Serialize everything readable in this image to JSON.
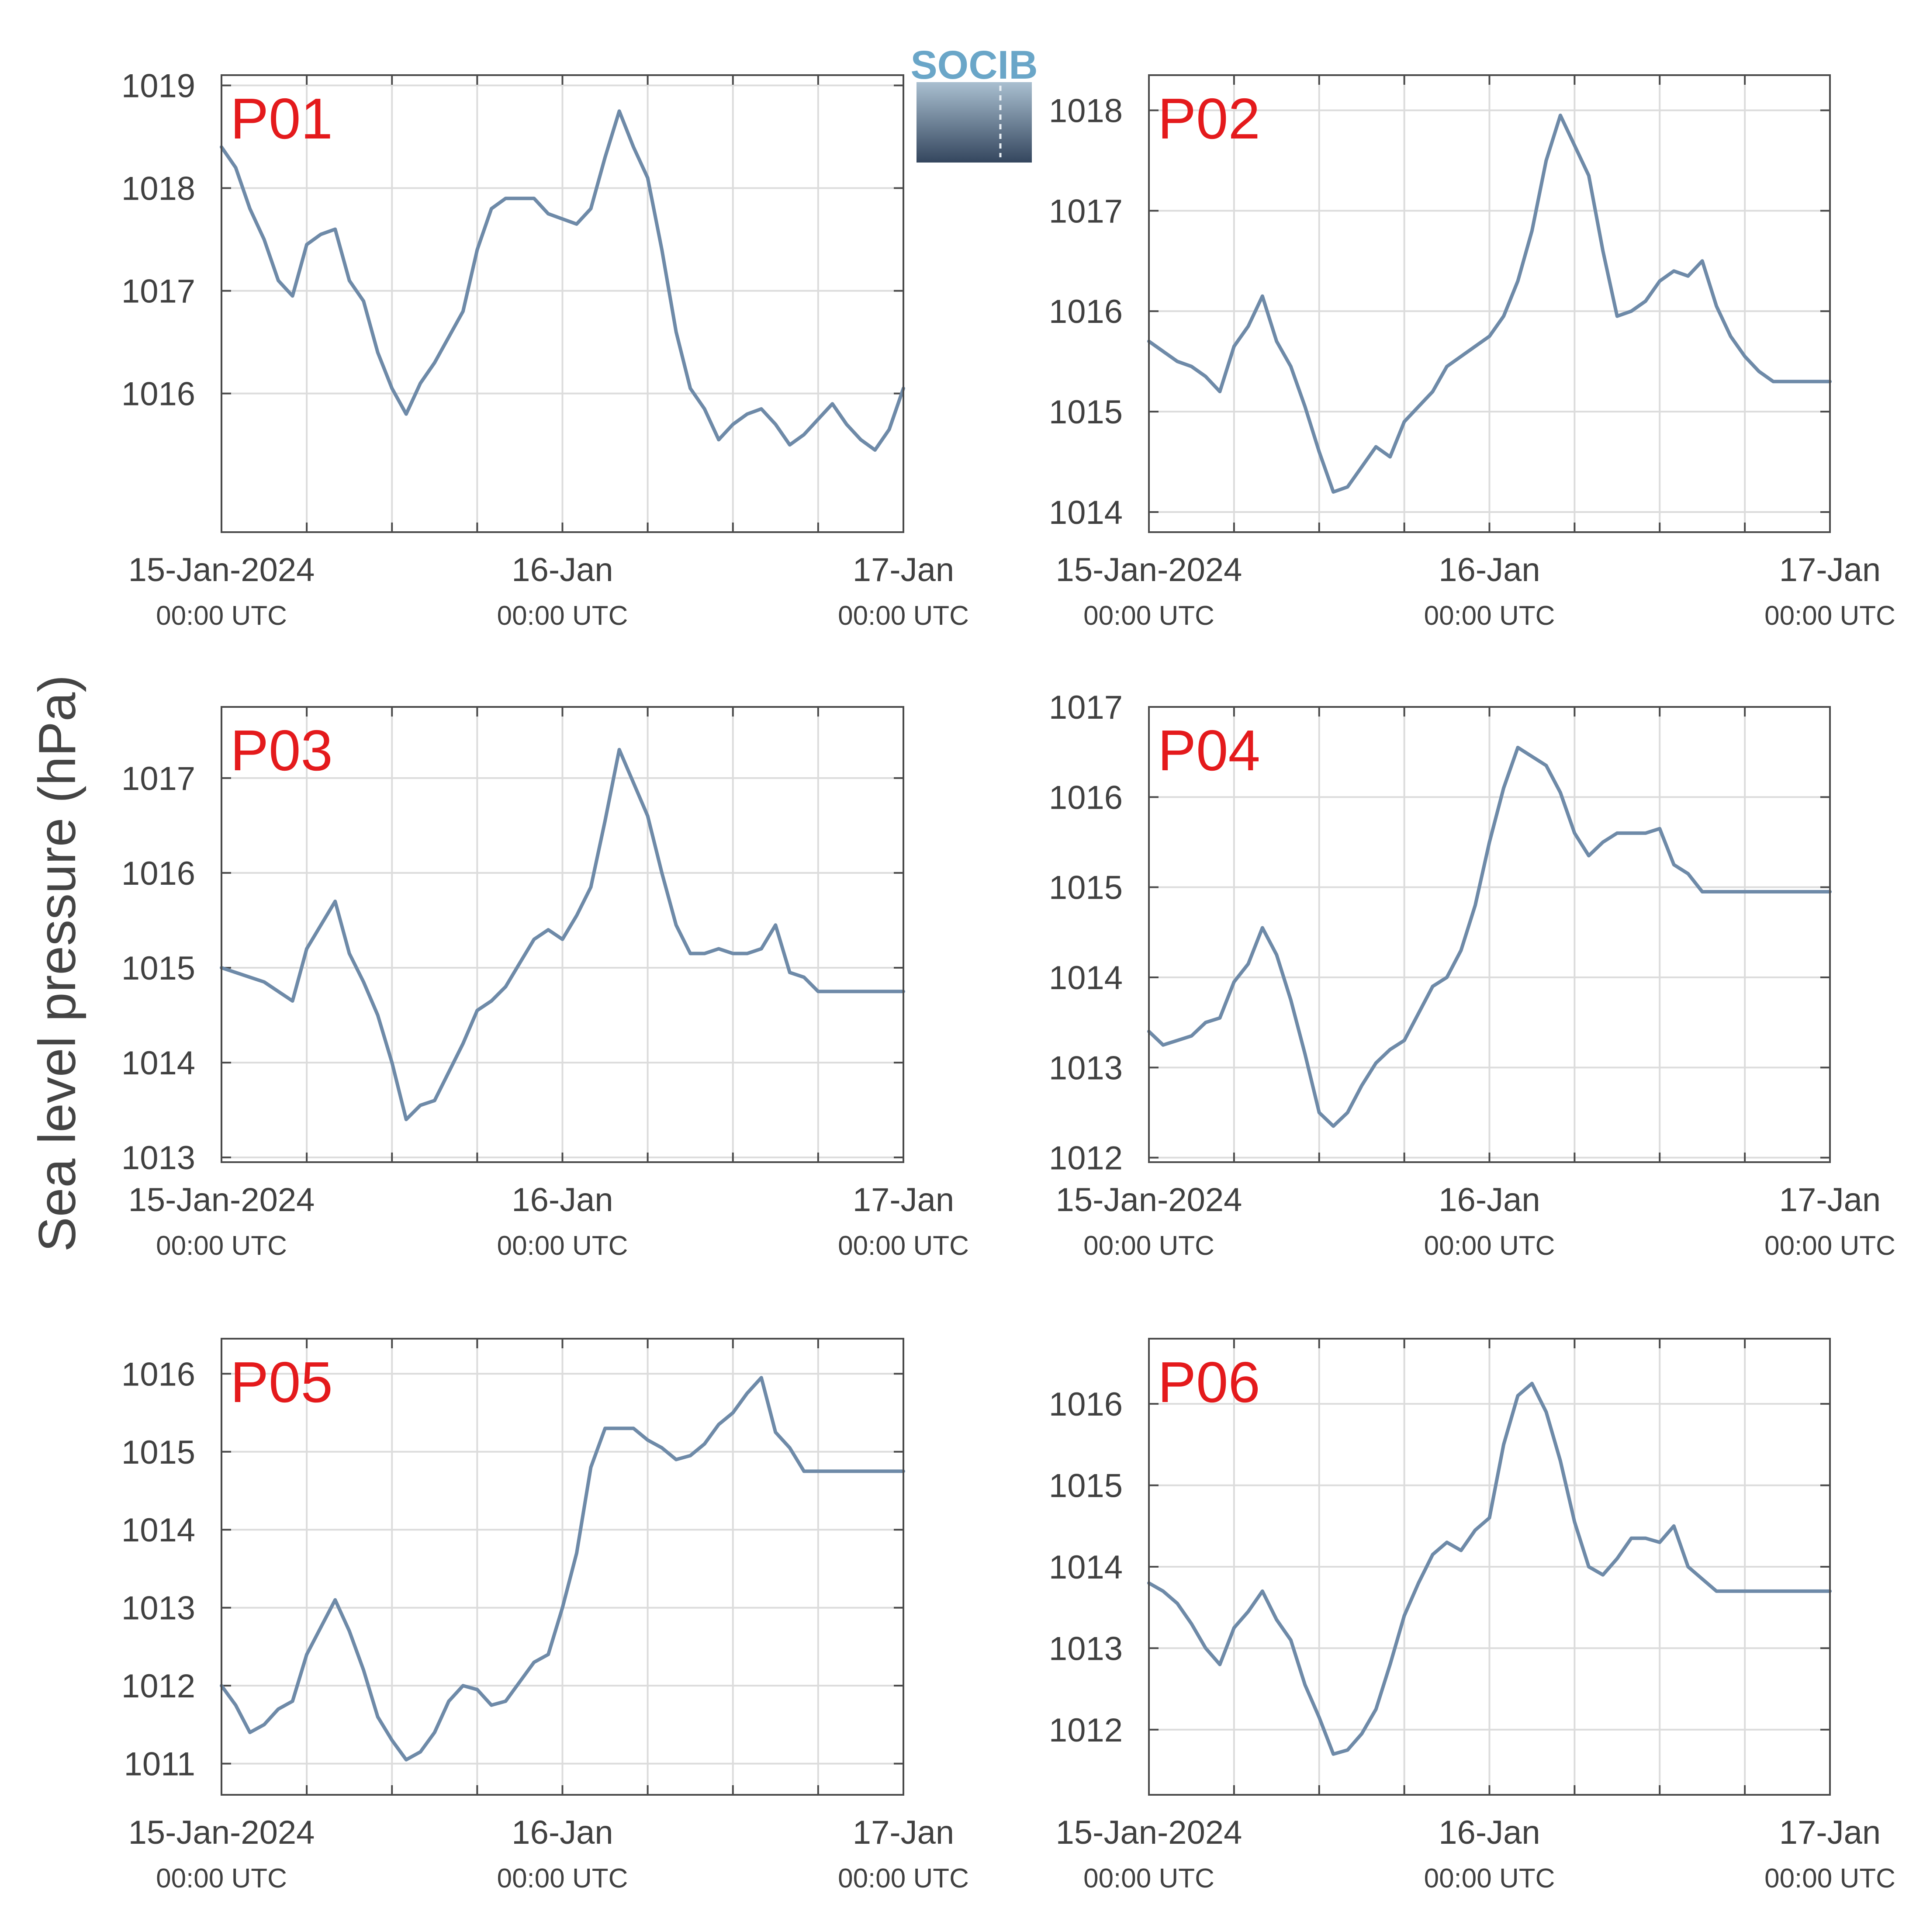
{
  "figure": {
    "ylabel": "Sea level pressure (hPa)",
    "logo_text": "SOCIB",
    "x_ticks": [
      {
        "value": 0,
        "date": "15-Jan-2024",
        "time": "00:00 UTC"
      },
      {
        "value": 24,
        "date": "16-Jan",
        "time": "00:00 UTC"
      },
      {
        "value": 48,
        "date": "17-Jan",
        "time": "00:00 UTC"
      }
    ],
    "x_gridlines_hours": [
      6,
      12,
      18,
      24,
      30,
      36,
      42
    ],
    "xlim_hours": [
      0,
      48
    ],
    "line_color": "#6e8aa8",
    "label_color": "#e41a1c"
  },
  "chart_data": [
    {
      "type": "line",
      "name": "P01",
      "xlabel": "",
      "ylabel": "",
      "ylim": [
        1014.65,
        1019.1
      ],
      "yticks": [
        1016,
        1017,
        1018,
        1019
      ],
      "grid": true,
      "x": [
        0,
        1,
        2,
        3,
        4,
        5,
        6,
        7,
        8,
        9,
        10,
        11,
        12,
        13,
        14,
        15,
        16,
        17,
        18,
        19,
        20,
        21,
        22,
        23,
        24,
        25,
        26,
        27,
        28,
        29,
        30,
        31,
        32,
        33,
        34,
        35,
        36,
        37,
        38,
        39,
        40,
        41,
        42,
        43,
        44,
        45,
        46,
        47,
        48
      ],
      "values": [
        1018.4,
        1018.2,
        1017.8,
        1017.5,
        1017.1,
        1016.95,
        1017.45,
        1017.55,
        1017.6,
        1017.1,
        1016.9,
        1016.4,
        1016.05,
        1015.8,
        1016.1,
        1016.3,
        1016.55,
        1016.8,
        1017.4,
        1017.8,
        1017.9,
        1017.9,
        1017.9,
        1017.75,
        1017.7,
        1017.65,
        1017.8,
        1018.3,
        1018.75,
        1018.4,
        1018.1,
        1017.4,
        1016.6,
        1016.05,
        1015.85,
        1015.55,
        1015.7,
        1015.8,
        1015.85,
        1015.7,
        1015.5,
        1015.6,
        1015.75,
        1015.9,
        1015.7,
        1015.55,
        1015.45,
        1015.65,
        1016.05
      ]
    },
    {
      "type": "line",
      "name": "P02",
      "xlabel": "",
      "ylabel": "",
      "ylim": [
        1013.8,
        1018.35
      ],
      "yticks": [
        1014,
        1015,
        1016,
        1017,
        1018
      ],
      "grid": true,
      "x": [
        0,
        1,
        2,
        3,
        4,
        5,
        6,
        7,
        8,
        9,
        10,
        11,
        12,
        13,
        14,
        15,
        16,
        17,
        18,
        19,
        20,
        21,
        22,
        23,
        24,
        25,
        26,
        27,
        28,
        29,
        30,
        31,
        32,
        33,
        34,
        35,
        36,
        37,
        38,
        39,
        40,
        41,
        42,
        43,
        44,
        45,
        46,
        47,
        48
      ],
      "values": [
        1015.7,
        1015.6,
        1015.5,
        1015.45,
        1015.35,
        1015.2,
        1015.65,
        1015.85,
        1016.15,
        1015.7,
        1015.45,
        1015.05,
        1014.6,
        1014.2,
        1014.25,
        1014.45,
        1014.65,
        1014.55,
        1014.9,
        1015.05,
        1015.2,
        1015.45,
        1015.55,
        1015.65,
        1015.75,
        1015.95,
        1016.3,
        1016.8,
        1017.5,
        1017.95,
        1017.65,
        1017.35,
        1016.6,
        1015.95,
        1016.0,
        1016.1,
        1016.3,
        1016.4,
        1016.35,
        1016.5,
        1016.05,
        1015.75,
        1015.55,
        1015.4,
        1015.3,
        1015.3,
        1015.3,
        1015.3,
        1015.3
      ]
    },
    {
      "type": "line",
      "name": "P03",
      "xlabel": "",
      "ylabel": "",
      "ylim": [
        1012.95,
        1017.75
      ],
      "yticks": [
        1013,
        1014,
        1015,
        1016,
        1017
      ],
      "grid": true,
      "x": [
        0,
        1,
        2,
        3,
        4,
        5,
        6,
        7,
        8,
        9,
        10,
        11,
        12,
        13,
        14,
        15,
        16,
        17,
        18,
        19,
        20,
        21,
        22,
        23,
        24,
        25,
        26,
        27,
        28,
        29,
        30,
        31,
        32,
        33,
        34,
        35,
        36,
        37,
        38,
        39,
        40,
        41,
        42,
        43,
        44,
        45,
        46,
        47,
        48
      ],
      "values": [
        1015.0,
        1014.95,
        1014.9,
        1014.85,
        1014.75,
        1014.65,
        1015.2,
        1015.45,
        1015.7,
        1015.15,
        1014.85,
        1014.5,
        1014.0,
        1013.4,
        1013.55,
        1013.6,
        1013.9,
        1014.2,
        1014.55,
        1014.65,
        1014.8,
        1015.05,
        1015.3,
        1015.4,
        1015.3,
        1015.55,
        1015.85,
        1016.55,
        1017.3,
        1016.95,
        1016.6,
        1016.0,
        1015.45,
        1015.15,
        1015.15,
        1015.2,
        1015.15,
        1015.15,
        1015.2,
        1015.45,
        1014.95,
        1014.9,
        1014.75,
        1014.75,
        1014.75,
        1014.75,
        1014.75,
        1014.75,
        1014.75
      ]
    },
    {
      "type": "line",
      "name": "P04",
      "xlabel": "",
      "ylabel": "",
      "ylim": [
        1011.95,
        1017.0
      ],
      "yticks": [
        1012,
        1013,
        1014,
        1015,
        1016,
        1017
      ],
      "grid": true,
      "x": [
        0,
        1,
        2,
        3,
        4,
        5,
        6,
        7,
        8,
        9,
        10,
        11,
        12,
        13,
        14,
        15,
        16,
        17,
        18,
        19,
        20,
        21,
        22,
        23,
        24,
        25,
        26,
        27,
        28,
        29,
        30,
        31,
        32,
        33,
        34,
        35,
        36,
        37,
        38,
        39,
        40,
        41,
        42,
        43,
        44,
        45,
        46,
        47,
        48
      ],
      "values": [
        1013.4,
        1013.25,
        1013.3,
        1013.35,
        1013.5,
        1013.55,
        1013.95,
        1014.15,
        1014.55,
        1014.25,
        1013.75,
        1013.15,
        1012.5,
        1012.35,
        1012.5,
        1012.8,
        1013.05,
        1013.2,
        1013.3,
        1013.6,
        1013.9,
        1014.0,
        1014.3,
        1014.8,
        1015.5,
        1016.1,
        1016.55,
        1016.45,
        1016.35,
        1016.05,
        1015.6,
        1015.35,
        1015.5,
        1015.6,
        1015.6,
        1015.6,
        1015.65,
        1015.25,
        1015.15,
        1014.95,
        1014.95,
        1014.95,
        1014.95,
        1014.95,
        1014.95,
        1014.95,
        1014.95,
        1014.95,
        1014.95
      ]
    },
    {
      "type": "line",
      "name": "P05",
      "xlabel": "",
      "ylabel": "",
      "ylim": [
        1010.6,
        1016.45
      ],
      "yticks": [
        1011,
        1012,
        1013,
        1014,
        1015,
        1016
      ],
      "grid": true,
      "x": [
        0,
        1,
        2,
        3,
        4,
        5,
        6,
        7,
        8,
        9,
        10,
        11,
        12,
        13,
        14,
        15,
        16,
        17,
        18,
        19,
        20,
        21,
        22,
        23,
        24,
        25,
        26,
        27,
        28,
        29,
        30,
        31,
        32,
        33,
        34,
        35,
        36,
        37,
        38,
        39,
        40,
        41,
        42,
        43,
        44,
        45,
        46,
        47,
        48
      ],
      "values": [
        1012.0,
        1011.75,
        1011.4,
        1011.5,
        1011.7,
        1011.8,
        1012.4,
        1012.75,
        1013.1,
        1012.7,
        1012.2,
        1011.6,
        1011.3,
        1011.05,
        1011.15,
        1011.4,
        1011.8,
        1012.0,
        1011.95,
        1011.75,
        1011.8,
        1012.05,
        1012.3,
        1012.4,
        1013.0,
        1013.7,
        1014.8,
        1015.3,
        1015.3,
        1015.3,
        1015.15,
        1015.05,
        1014.9,
        1014.95,
        1015.1,
        1015.35,
        1015.5,
        1015.75,
        1015.95,
        1015.25,
        1015.05,
        1014.75,
        1014.75,
        1014.75,
        1014.75,
        1014.75,
        1014.75,
        1014.75,
        1014.75
      ]
    },
    {
      "type": "line",
      "name": "P06",
      "xlabel": "",
      "ylabel": "",
      "ylim": [
        1011.2,
        1016.8
      ],
      "yticks": [
        1012,
        1013,
        1014,
        1015,
        1016
      ],
      "grid": true,
      "x": [
        0,
        1,
        2,
        3,
        4,
        5,
        6,
        7,
        8,
        9,
        10,
        11,
        12,
        13,
        14,
        15,
        16,
        17,
        18,
        19,
        20,
        21,
        22,
        23,
        24,
        25,
        26,
        27,
        28,
        29,
        30,
        31,
        32,
        33,
        34,
        35,
        36,
        37,
        38,
        39,
        40,
        41,
        42,
        43,
        44,
        45,
        46,
        47,
        48
      ],
      "values": [
        1013.8,
        1013.7,
        1013.55,
        1013.3,
        1013.0,
        1012.8,
        1013.25,
        1013.45,
        1013.7,
        1013.35,
        1013.1,
        1012.55,
        1012.15,
        1011.7,
        1011.75,
        1011.95,
        1012.25,
        1012.8,
        1013.4,
        1013.8,
        1014.15,
        1014.3,
        1014.2,
        1014.45,
        1014.6,
        1015.5,
        1016.1,
        1016.25,
        1015.9,
        1015.3,
        1014.55,
        1014.0,
        1013.9,
        1014.1,
        1014.35,
        1014.35,
        1014.3,
        1014.5,
        1014.0,
        1013.85,
        1013.7,
        1013.7,
        1013.7,
        1013.7,
        1013.7,
        1013.7,
        1013.7,
        1013.7,
        1013.7
      ]
    }
  ]
}
